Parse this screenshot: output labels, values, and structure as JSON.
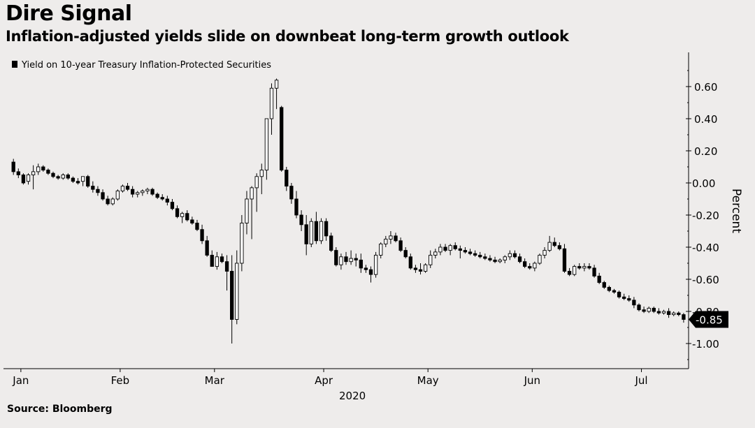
{
  "title": "Dire Signal",
  "subtitle": "Inflation-adjusted yields slide on downbeat long-term growth outlook",
  "source": "Source: Bloomberg",
  "colors": {
    "background": "#eeeceb",
    "ink": "#000000",
    "up_fill": "#ffffff"
  },
  "chart_data": {
    "type": "candlestick",
    "series_name": "Yield on 10-year Treasury Inflation-Protected Securities",
    "ylabel": "Percent",
    "xlabel": "2020",
    "ylim": [
      -1.12,
      0.8
    ],
    "y_ticks": [
      "0.60",
      "0.40",
      "0.20",
      "0.00",
      "-0.20",
      "-0.40",
      "-0.60",
      "-0.80",
      "-1.00"
    ],
    "y_tick_values": [
      0.6,
      0.4,
      0.2,
      0.0,
      -0.2,
      -0.4,
      -0.6,
      -0.8,
      -1.0
    ],
    "x_ticks": [
      "Jan",
      "Feb",
      "Mar",
      "Apr",
      "May",
      "Jun",
      "Jul"
    ],
    "x_tick_positions": [
      1.5,
      21.5,
      40.5,
      62.5,
      83.5,
      104.5,
      126.5
    ],
    "x_range": [
      -2,
      136
    ],
    "last_value": "-0.85",
    "candles": [
      [
        0.13,
        0.15,
        0.05,
        0.07
      ],
      [
        0.07,
        0.09,
        0.03,
        0.05
      ],
      [
        0.05,
        0.06,
        -0.01,
        0.0
      ],
      [
        0.01,
        0.06,
        -0.01,
        0.05
      ],
      [
        0.05,
        0.11,
        -0.04,
        0.07
      ],
      [
        0.07,
        0.12,
        0.05,
        0.1
      ],
      [
        0.1,
        0.11,
        0.07,
        0.08
      ],
      [
        0.08,
        0.09,
        0.05,
        0.06
      ],
      [
        0.06,
        0.07,
        0.03,
        0.04
      ],
      [
        0.04,
        0.05,
        0.02,
        0.03
      ],
      [
        0.03,
        0.06,
        0.02,
        0.05
      ],
      [
        0.05,
        0.06,
        0.02,
        0.03
      ],
      [
        0.03,
        0.04,
        0.0,
        0.01
      ],
      [
        0.01,
        0.03,
        -0.01,
        0.0
      ],
      [
        0.01,
        0.04,
        -0.02,
        0.04
      ],
      [
        0.04,
        0.05,
        -0.03,
        -0.02
      ],
      [
        -0.02,
        0.01,
        -0.06,
        -0.04
      ],
      [
        -0.04,
        -0.02,
        -0.08,
        -0.06
      ],
      [
        -0.06,
        -0.04,
        -0.11,
        -0.1
      ],
      [
        -0.1,
        -0.08,
        -0.14,
        -0.13
      ],
      [
        -0.13,
        -0.09,
        -0.14,
        -0.1
      ],
      [
        -0.1,
        -0.04,
        -0.11,
        -0.05
      ],
      [
        -0.05,
        -0.01,
        -0.06,
        -0.02
      ],
      [
        -0.02,
        0.0,
        -0.05,
        -0.04
      ],
      [
        -0.04,
        -0.02,
        -0.09,
        -0.07
      ],
      [
        -0.07,
        -0.05,
        -0.09,
        -0.06
      ],
      [
        -0.06,
        -0.04,
        -0.08,
        -0.05
      ],
      [
        -0.05,
        -0.03,
        -0.07,
        -0.04
      ],
      [
        -0.04,
        -0.03,
        -0.08,
        -0.07
      ],
      [
        -0.07,
        -0.06,
        -0.1,
        -0.09
      ],
      [
        -0.09,
        -0.07,
        -0.11,
        -0.1
      ],
      [
        -0.1,
        -0.08,
        -0.14,
        -0.12
      ],
      [
        -0.12,
        -0.1,
        -0.17,
        -0.16
      ],
      [
        -0.16,
        -0.14,
        -0.22,
        -0.21
      ],
      [
        -0.21,
        -0.18,
        -0.25,
        -0.19
      ],
      [
        -0.19,
        -0.17,
        -0.24,
        -0.23
      ],
      [
        -0.23,
        -0.21,
        -0.26,
        -0.25
      ],
      [
        -0.25,
        -0.23,
        -0.3,
        -0.29
      ],
      [
        -0.29,
        -0.26,
        -0.38,
        -0.36
      ],
      [
        -0.36,
        -0.33,
        -0.46,
        -0.45
      ],
      [
        -0.45,
        -0.42,
        -0.52,
        -0.52
      ],
      [
        -0.52,
        -0.43,
        -0.54,
        -0.46
      ],
      [
        -0.46,
        -0.44,
        -0.5,
        -0.49
      ],
      [
        -0.49,
        -0.45,
        -0.67,
        -0.55
      ],
      [
        -0.55,
        -0.45,
        -1.0,
        -0.85
      ],
      [
        -0.85,
        -0.42,
        -0.88,
        -0.5
      ],
      [
        -0.5,
        -0.2,
        -0.55,
        -0.25
      ],
      [
        -0.25,
        -0.05,
        -0.32,
        -0.1
      ],
      [
        -0.1,
        -0.02,
        -0.35,
        -0.03
      ],
      [
        -0.03,
        0.06,
        -0.18,
        0.04
      ],
      [
        0.04,
        0.12,
        -0.07,
        0.08
      ],
      [
        0.08,
        0.4,
        0.02,
        0.4
      ],
      [
        0.4,
        0.62,
        0.3,
        0.59
      ],
      [
        0.59,
        0.65,
        0.46,
        0.64
      ],
      [
        0.47,
        0.48,
        0.07,
        0.08
      ],
      [
        0.08,
        0.1,
        -0.05,
        -0.02
      ],
      [
        -0.02,
        0.0,
        -0.13,
        -0.1
      ],
      [
        -0.1,
        -0.05,
        -0.22,
        -0.2
      ],
      [
        -0.2,
        -0.17,
        -0.3,
        -0.26
      ],
      [
        -0.26,
        -0.2,
        -0.45,
        -0.38
      ],
      [
        -0.38,
        -0.22,
        -0.4,
        -0.24
      ],
      [
        -0.24,
        -0.18,
        -0.38,
        -0.36
      ],
      [
        -0.36,
        -0.22,
        -0.38,
        -0.24
      ],
      [
        -0.24,
        -0.22,
        -0.36,
        -0.33
      ],
      [
        -0.33,
        -0.31,
        -0.43,
        -0.42
      ],
      [
        -0.42,
        -0.4,
        -0.52,
        -0.51
      ],
      [
        -0.51,
        -0.44,
        -0.54,
        -0.46
      ],
      [
        -0.46,
        -0.43,
        -0.51,
        -0.49
      ],
      [
        -0.49,
        -0.42,
        -0.51,
        -0.47
      ],
      [
        -0.47,
        -0.44,
        -0.52,
        -0.48
      ],
      [
        -0.48,
        -0.44,
        -0.56,
        -0.53
      ],
      [
        -0.53,
        -0.51,
        -0.56,
        -0.54
      ],
      [
        -0.54,
        -0.52,
        -0.62,
        -0.57
      ],
      [
        -0.57,
        -0.43,
        -0.59,
        -0.45
      ],
      [
        -0.45,
        -0.37,
        -0.47,
        -0.38
      ],
      [
        -0.38,
        -0.33,
        -0.4,
        -0.35
      ],
      [
        -0.35,
        -0.3,
        -0.38,
        -0.33
      ],
      [
        -0.33,
        -0.31,
        -0.37,
        -0.36
      ],
      [
        -0.36,
        -0.34,
        -0.43,
        -0.42
      ],
      [
        -0.42,
        -0.4,
        -0.47,
        -0.46
      ],
      [
        -0.46,
        -0.44,
        -0.54,
        -0.53
      ],
      [
        -0.53,
        -0.51,
        -0.56,
        -0.54
      ],
      [
        -0.54,
        -0.5,
        -0.57,
        -0.55
      ],
      [
        -0.55,
        -0.5,
        -0.56,
        -0.51
      ],
      [
        -0.51,
        -0.42,
        -0.53,
        -0.45
      ],
      [
        -0.45,
        -0.41,
        -0.47,
        -0.43
      ],
      [
        -0.43,
        -0.38,
        -0.45,
        -0.4
      ],
      [
        -0.4,
        -0.38,
        -0.43,
        -0.42
      ],
      [
        -0.42,
        -0.38,
        -0.45,
        -0.39
      ],
      [
        -0.39,
        -0.37,
        -0.42,
        -0.41
      ],
      [
        -0.41,
        -0.39,
        -0.47,
        -0.42
      ],
      [
        -0.42,
        -0.4,
        -0.44,
        -0.43
      ],
      [
        -0.43,
        -0.41,
        -0.45,
        -0.44
      ],
      [
        -0.44,
        -0.42,
        -0.46,
        -0.45
      ],
      [
        -0.45,
        -0.43,
        -0.47,
        -0.46
      ],
      [
        -0.46,
        -0.44,
        -0.48,
        -0.47
      ],
      [
        -0.47,
        -0.45,
        -0.49,
        -0.48
      ],
      [
        -0.48,
        -0.46,
        -0.5,
        -0.49
      ],
      [
        -0.49,
        -0.47,
        -0.5,
        -0.48
      ],
      [
        -0.48,
        -0.45,
        -0.5,
        -0.46
      ],
      [
        -0.46,
        -0.42,
        -0.48,
        -0.44
      ],
      [
        -0.44,
        -0.42,
        -0.47,
        -0.46
      ],
      [
        -0.46,
        -0.44,
        -0.5,
        -0.49
      ],
      [
        -0.49,
        -0.47,
        -0.53,
        -0.52
      ],
      [
        -0.52,
        -0.5,
        -0.54,
        -0.53
      ],
      [
        -0.53,
        -0.49,
        -0.55,
        -0.5
      ],
      [
        -0.5,
        -0.44,
        -0.51,
        -0.45
      ],
      [
        -0.45,
        -0.4,
        -0.47,
        -0.42
      ],
      [
        -0.42,
        -0.33,
        -0.43,
        -0.37
      ],
      [
        -0.37,
        -0.34,
        -0.4,
        -0.39
      ],
      [
        -0.39,
        -0.37,
        -0.42,
        -0.41
      ],
      [
        -0.41,
        -0.38,
        -0.56,
        -0.55
      ],
      [
        -0.55,
        -0.53,
        -0.58,
        -0.57
      ],
      [
        -0.57,
        -0.51,
        -0.58,
        -0.52
      ],
      [
        -0.52,
        -0.5,
        -0.54,
        -0.53
      ],
      [
        -0.53,
        -0.5,
        -0.55,
        -0.52
      ],
      [
        -0.52,
        -0.5,
        -0.54,
        -0.53
      ],
      [
        -0.53,
        -0.51,
        -0.59,
        -0.58
      ],
      [
        -0.58,
        -0.56,
        -0.63,
        -0.62
      ],
      [
        -0.62,
        -0.61,
        -0.66,
        -0.65
      ],
      [
        -0.65,
        -0.64,
        -0.68,
        -0.67
      ],
      [
        -0.67,
        -0.66,
        -0.69,
        -0.68
      ],
      [
        -0.68,
        -0.67,
        -0.72,
        -0.71
      ],
      [
        -0.71,
        -0.69,
        -0.73,
        -0.72
      ],
      [
        -0.72,
        -0.7,
        -0.74,
        -0.73
      ],
      [
        -0.73,
        -0.71,
        -0.78,
        -0.76
      ],
      [
        -0.76,
        -0.75,
        -0.8,
        -0.79
      ],
      [
        -0.79,
        -0.77,
        -0.81,
        -0.8
      ],
      [
        -0.8,
        -0.77,
        -0.81,
        -0.78
      ],
      [
        -0.78,
        -0.77,
        -0.81,
        -0.8
      ],
      [
        -0.8,
        -0.78,
        -0.82,
        -0.81
      ],
      [
        -0.81,
        -0.79,
        -0.82,
        -0.8
      ],
      [
        -0.8,
        -0.78,
        -0.84,
        -0.82
      ],
      [
        -0.82,
        -0.8,
        -0.83,
        -0.81
      ],
      [
        -0.81,
        -0.8,
        -0.83,
        -0.82
      ],
      [
        -0.82,
        -0.81,
        -0.87,
        -0.85
      ]
    ]
  }
}
